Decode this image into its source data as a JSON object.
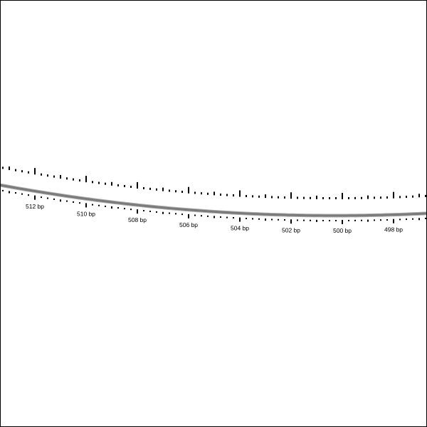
{
  "map": {
    "backbone_color": "#7a7a7a",
    "tick_color": "#000000",
    "labels": [
      {
        "text": "512 bp",
        "bp": 512
      },
      {
        "text": "510 bp",
        "bp": 510
      },
      {
        "text": "508 bp",
        "bp": 508
      },
      {
        "text": "506 bp",
        "bp": 506
      },
      {
        "text": "504 bp",
        "bp": 504
      },
      {
        "text": "502 bp",
        "bp": 502
      },
      {
        "text": "500 bp",
        "bp": 500
      },
      {
        "text": "498 bp",
        "bp": 498
      }
    ]
  }
}
